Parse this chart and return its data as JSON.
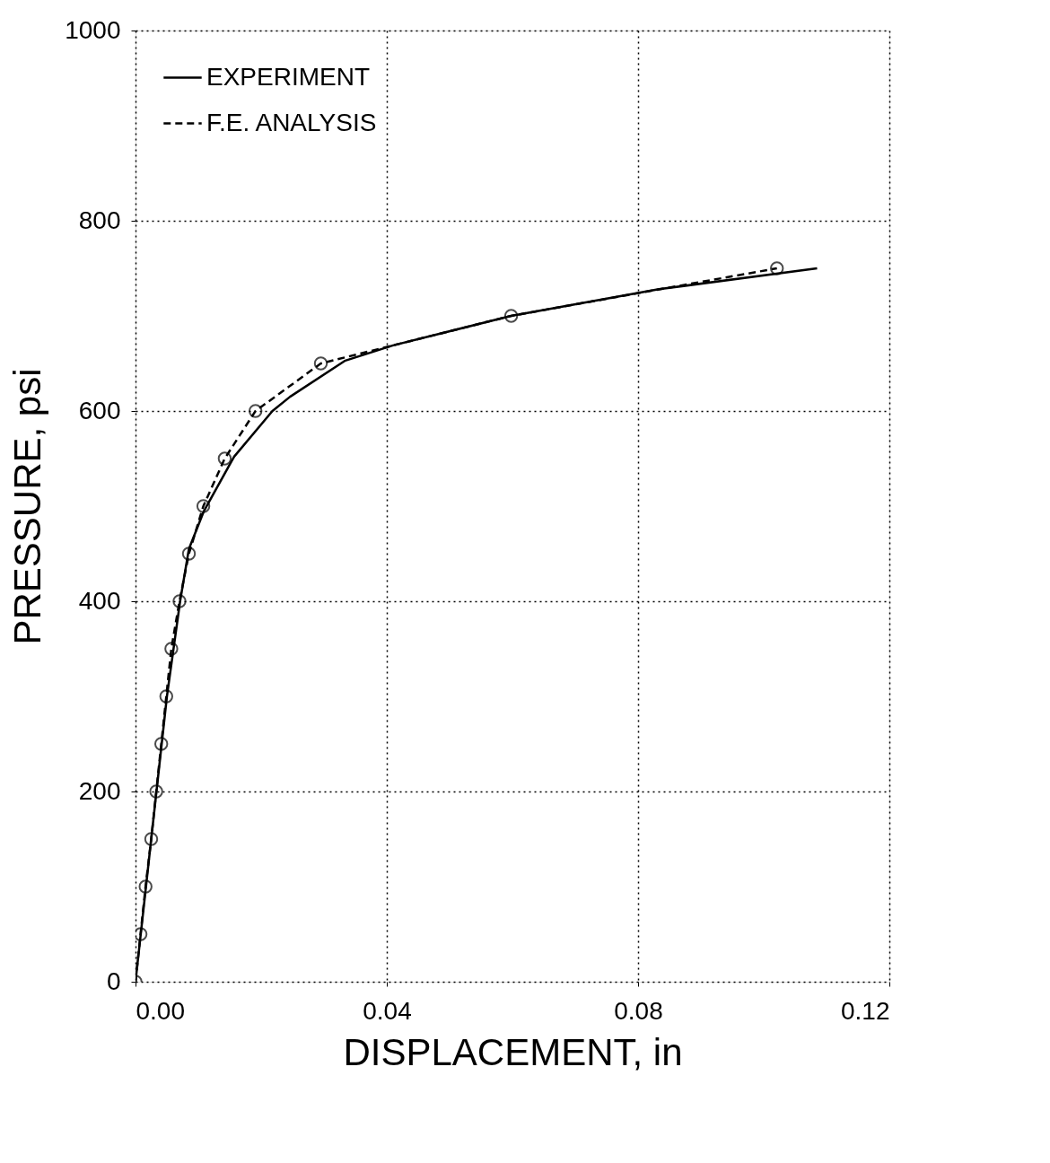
{
  "chart_data": {
    "type": "line",
    "xlabel": "DISPLACEMENT,  in",
    "ylabel": "PRESSURE,  psi",
    "xlim": [
      0,
      0.12
    ],
    "ylim": [
      0,
      1000
    ],
    "xticks": [
      {
        "value": 0,
        "label": "0.00"
      },
      {
        "value": 0.04,
        "label": "0.04"
      },
      {
        "value": 0.08,
        "label": "0.08"
      },
      {
        "value": 0.12,
        "label": "0.12"
      }
    ],
    "yticks": [
      0,
      200,
      400,
      600,
      800,
      1000
    ],
    "grid": true,
    "legend": "top left",
    "series": [
      {
        "name": "EXPERIMENT",
        "color": "#000000",
        "line_style": "solid",
        "marker": "none",
        "x": [
          0,
          0.0025,
          0.005,
          0.0071,
          0.0085,
          0.0109,
          0.0157,
          0.0218,
          0.0246,
          0.0334,
          0.041,
          0.0598,
          0.0833,
          0.1085
        ],
        "values": [
          0,
          150,
          300,
          400,
          455,
          495,
          552,
          600,
          615,
          653,
          669,
          700,
          728,
          750
        ]
      },
      {
        "name": "F.E. ANALYSIS",
        "color": "#000000",
        "line_style": "dashed",
        "marker": "circle",
        "x": [
          0,
          0.0008,
          0.0016,
          0.0025,
          0.0033,
          0.0041,
          0.0049,
          0.0057,
          0.007,
          0.0085,
          0.0108,
          0.0142,
          0.0191,
          0.0295,
          0.0598,
          0.1021
        ],
        "values": [
          0,
          50,
          100,
          150,
          200,
          250,
          300,
          350,
          400,
          450,
          500,
          550,
          600,
          650,
          700,
          750
        ]
      }
    ]
  }
}
